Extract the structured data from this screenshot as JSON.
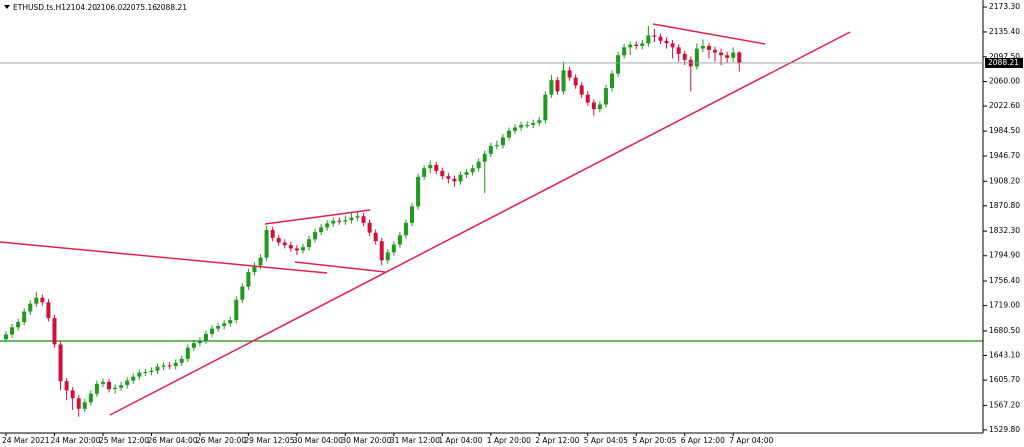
{
  "chart_data": {
    "type": "candlestick",
    "symbol": "ETHUSD.ts.H1",
    "header_values": [
      "2104.20",
      "2106.02",
      "2075.16",
      "2088.21"
    ],
    "last_price": {
      "value": 2088.21,
      "label": "2088.21"
    },
    "up_color": "#1f9a1f",
    "down_color": "#d0103a",
    "ylim": [
      1525.2,
      2184.0
    ],
    "yticks": [
      {
        "value": 2173.3,
        "label": "2173.30"
      },
      {
        "value": 2135.4,
        "label": "2135.40"
      },
      {
        "value": 2097.5,
        "label": "2097.50"
      },
      {
        "value": 2060,
        "label": "2060.00"
      },
      {
        "value": 2022.6,
        "label": "2022.60"
      },
      {
        "value": 1984.5,
        "label": "1984.50"
      },
      {
        "value": 1946.7,
        "label": "1946.70"
      },
      {
        "value": 1908.2,
        "label": "1908.20"
      },
      {
        "value": 1870.8,
        "label": "1870.80"
      },
      {
        "value": 1832.3,
        "label": "1832.30"
      },
      {
        "value": 1794.9,
        "label": "1794.90"
      },
      {
        "value": 1756.4,
        "label": "1756.40"
      },
      {
        "value": 1719,
        "label": "1719.00"
      },
      {
        "value": 1680.5,
        "label": "1680.50"
      },
      {
        "value": 1643.1,
        "label": "1643.10"
      },
      {
        "value": 1605.7,
        "label": "1605.70"
      },
      {
        "value": 1567.2,
        "label": "1567.20"
      },
      {
        "value": 1529.8,
        "label": "1529.80"
      }
    ],
    "categories": [
      "24 Mar 2021",
      null,
      null,
      null,
      null,
      null,
      null,
      null,
      "24 Mar 20:00",
      null,
      null,
      null,
      null,
      null,
      null,
      null,
      "25 Mar 12:00",
      null,
      null,
      null,
      null,
      null,
      null,
      null,
      "26 Mar 04:00",
      null,
      null,
      null,
      null,
      null,
      null,
      null,
      "26 Mar 20:00",
      null,
      null,
      null,
      null,
      null,
      null,
      null,
      "29 Mar 12:05",
      null,
      null,
      null,
      null,
      null,
      null,
      null,
      "30 Mar 04:00",
      null,
      null,
      null,
      null,
      null,
      null,
      null,
      "30 Mar 20:00",
      null,
      null,
      null,
      null,
      null,
      null,
      null,
      "31 Mar 12:00",
      null,
      null,
      null,
      null,
      null,
      null,
      null,
      "1 Apr 04:00",
      null,
      null,
      null,
      null,
      null,
      null,
      null,
      "1 Apr 20:00",
      null,
      null,
      null,
      null,
      null,
      null,
      null,
      "2 Apr 12:00",
      null,
      null,
      null,
      null,
      null,
      null,
      null,
      "5 Apr 04:05",
      null,
      null,
      null,
      null,
      null,
      null,
      null,
      "5 Apr 20:05",
      null,
      null,
      null,
      null,
      null,
      null,
      null,
      "6 Apr 12:00",
      null,
      null,
      null,
      null,
      null,
      null,
      null,
      "7 Apr 04:00",
      null
    ],
    "open": [
      1668,
      1675,
      1686,
      1694,
      1710,
      1722,
      1731,
      1724,
      1700,
      1660,
      1604,
      1590,
      1578,
      1562,
      1572,
      1585,
      1600,
      1603,
      1592,
      1594,
      1598,
      1605,
      1611,
      1617,
      1618,
      1620,
      1626,
      1628,
      1627,
      1632,
      1638,
      1655,
      1662,
      1666,
      1676,
      1684,
      1688,
      1692,
      1697,
      1728,
      1748,
      1770,
      1780,
      1792,
      1834,
      1822,
      1815,
      1811,
      1806,
      1803,
      1808,
      1820,
      1831,
      1838,
      1844,
      1848,
      1847,
      1849,
      1853,
      1855,
      1845,
      1830,
      1817,
      1788,
      1800,
      1812,
      1826,
      1845,
      1870,
      1915,
      1928,
      1933,
      1924,
      1916,
      1912,
      1908,
      1918,
      1922,
      1928,
      1938,
      1950,
      1962,
      1963,
      1975,
      1985,
      1990,
      1994,
      1994,
      1997,
      2001,
      2040,
      2062,
      2045,
      2077,
      2066,
      2054,
      2040,
      2028,
      2018,
      2025,
      2050,
      2072,
      2100,
      2112,
      2116,
      2114,
      2118,
      2130,
      2128,
      2122,
      2118,
      2112,
      2102,
      2093,
      2083,
      2110,
      2114,
      2108,
      2104,
      2100,
      2096,
      2104.2
    ],
    "high": [
      1680,
      1691,
      1699,
      1715,
      1727,
      1740,
      1736,
      1729,
      1705,
      1665,
      1609,
      1595,
      1583,
      1577,
      1590,
      1605,
      1608,
      1608,
      1599,
      1603,
      1610,
      1616,
      1622,
      1623,
      1625,
      1631,
      1633,
      1633,
      1637,
      1643,
      1660,
      1667,
      1671,
      1681,
      1689,
      1693,
      1697,
      1702,
      1733,
      1753,
      1775,
      1785,
      1797,
      1840,
      1839,
      1827,
      1820,
      1816,
      1811,
      1813,
      1825,
      1836,
      1843,
      1849,
      1853,
      1853,
      1856,
      1862,
      1862,
      1860,
      1850,
      1835,
      1822,
      1805,
      1817,
      1831,
      1850,
      1875,
      1920,
      1933,
      1940,
      1938,
      1929,
      1921,
      1917,
      1923,
      1927,
      1933,
      1943,
      1955,
      1967,
      1970,
      1980,
      1990,
      1995,
      1999,
      1999,
      2002,
      2006,
      2045,
      2070,
      2067,
      2090,
      2082,
      2071,
      2059,
      2045,
      2033,
      2030,
      2055,
      2077,
      2105,
      2117,
      2121,
      2121,
      2123,
      2145,
      2140,
      2133,
      2127,
      2123,
      2117,
      2107,
      2098,
      2118,
      2124,
      2119,
      2113,
      2110,
      2105,
      2112,
      2106.02
    ],
    "low": [
      1663,
      1670,
      1681,
      1689,
      1705,
      1717,
      1719,
      1695,
      1655,
      1590,
      1575,
      1560,
      1550,
      1557,
      1567,
      1580,
      1595,
      1587,
      1585,
      1589,
      1593,
      1600,
      1606,
      1612,
      1613,
      1615,
      1621,
      1622,
      1622,
      1627,
      1633,
      1650,
      1657,
      1661,
      1671,
      1679,
      1683,
      1687,
      1692,
      1723,
      1743,
      1765,
      1775,
      1787,
      1817,
      1810,
      1806,
      1801,
      1796,
      1798,
      1803,
      1815,
      1826,
      1833,
      1839,
      1842,
      1842,
      1844,
      1848,
      1840,
      1825,
      1812,
      1780,
      1783,
      1795,
      1807,
      1821,
      1840,
      1865,
      1910,
      1920,
      1919,
      1911,
      1905,
      1900,
      1903,
      1913,
      1917,
      1923,
      1890,
      1945,
      1957,
      1958,
      1970,
      1980,
      1985,
      1989,
      1989,
      1992,
      1996,
      2035,
      2040,
      2040,
      2061,
      2049,
      2035,
      2023,
      2008,
      2013,
      2020,
      2045,
      2067,
      2095,
      2100,
      2109,
      2109,
      2113,
      2120,
      2117,
      2110,
      2095,
      2090,
      2085,
      2045,
      2078,
      2105,
      2095,
      2090,
      2085,
      2088,
      2090,
      2075.16
    ],
    "close": [
      1675,
      1686,
      1694,
      1710,
      1722,
      1731,
      1724,
      1700,
      1660,
      1604,
      1590,
      1578,
      1562,
      1572,
      1585,
      1600,
      1603,
      1592,
      1594,
      1598,
      1605,
      1611,
      1617,
      1618,
      1620,
      1626,
      1628,
      1627,
      1632,
      1638,
      1655,
      1662,
      1666,
      1676,
      1684,
      1688,
      1692,
      1697,
      1728,
      1748,
      1770,
      1780,
      1792,
      1834,
      1822,
      1815,
      1811,
      1806,
      1803,
      1808,
      1820,
      1831,
      1838,
      1844,
      1848,
      1847,
      1849,
      1853,
      1855,
      1845,
      1830,
      1817,
      1788,
      1800,
      1812,
      1826,
      1845,
      1870,
      1915,
      1928,
      1933,
      1924,
      1916,
      1912,
      1908,
      1918,
      1922,
      1928,
      1938,
      1950,
      1962,
      1963,
      1975,
      1985,
      1990,
      1994,
      1994,
      1997,
      2001,
      2040,
      2062,
      2045,
      2077,
      2066,
      2054,
      2040,
      2028,
      2018,
      2025,
      2050,
      2072,
      2100,
      2112,
      2116,
      2114,
      2118,
      2130,
      2128,
      2122,
      2118,
      2112,
      2102,
      2093,
      2083,
      2110,
      2114,
      2108,
      2104,
      2100,
      2096,
      2104,
      2088.21
    ]
  }
}
